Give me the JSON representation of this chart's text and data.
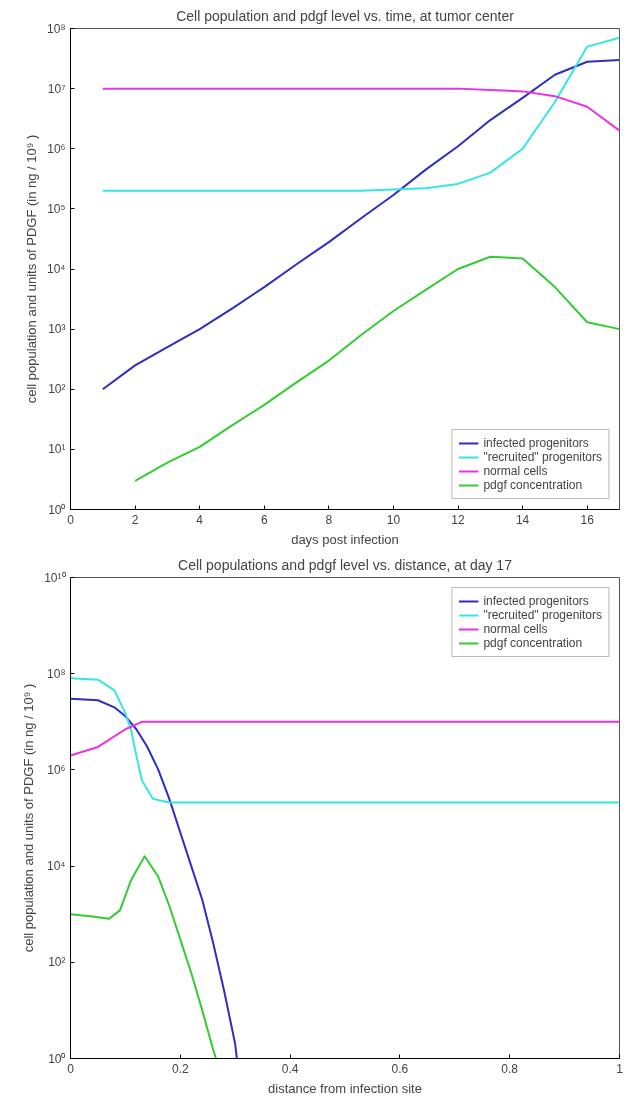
{
  "chart_data": [
    {
      "type": "line",
      "title": "Cell population and pdgf level vs. time, at tumor center",
      "xlabel": "days post infection",
      "ylabel": "cell population and units of PDGF (in ng / 10⁹ )",
      "log": "y",
      "grid": false,
      "legend": "bottom right",
      "xlim": [
        0,
        17
      ],
      "xticks": [
        0,
        2,
        4,
        6,
        8,
        10,
        12,
        14,
        16
      ],
      "ylim": [
        1,
        100000000
      ],
      "yticks": [
        {
          "value": 1,
          "label": "10⁰"
        },
        {
          "value": 10,
          "label": "10¹"
        },
        {
          "value": 100,
          "label": "10²"
        },
        {
          "value": 1000,
          "label": "10³"
        },
        {
          "value": 10000,
          "label": "10⁴"
        },
        {
          "value": 100000,
          "label": "10⁵"
        },
        {
          "value": 1000000,
          "label": "10⁶"
        },
        {
          "value": 10000000,
          "label": "10⁷"
        },
        {
          "value": 100000000,
          "label": "10⁸"
        }
      ],
      "series": [
        {
          "name": "infected progenitors",
          "color": "#2e2ebf",
          "x": [
            1,
            2,
            3,
            4,
            5,
            6,
            7,
            8,
            9,
            10,
            11,
            12,
            13,
            14,
            15,
            16,
            17
          ],
          "values": [
            100,
            250,
            500,
            1000,
            2200,
            5000,
            12000,
            28000,
            70000,
            170000,
            450000,
            1100000,
            3000000,
            7000000,
            17000000,
            28000000,
            30000000
          ]
        },
        {
          "name": "\"recruited\" progenitors",
          "color": "#33e6e6",
          "x": [
            1,
            2,
            3,
            4,
            5,
            6,
            7,
            8,
            9,
            10,
            11,
            12,
            13,
            14,
            15,
            16,
            17
          ],
          "values": [
            200000,
            200000,
            200000,
            200000,
            200000,
            200000,
            200000,
            200000,
            200000,
            210000,
            220000,
            260000,
            400000,
            1000000,
            6000000,
            50000000,
            70000000
          ]
        },
        {
          "name": "normal cells",
          "color": "#e633e6",
          "x": [
            1,
            2,
            3,
            4,
            5,
            6,
            7,
            8,
            9,
            10,
            11,
            12,
            13,
            14,
            15,
            16,
            17
          ],
          "values": [
            10000000,
            10000000,
            10000000,
            10000000,
            10000000,
            10000000,
            10000000,
            10000000,
            10000000,
            10000000,
            10000000,
            10000000,
            9500000,
            9000000,
            7500000,
            5000000,
            2000000
          ]
        },
        {
          "name": "pdgf concentration",
          "color": "#33cc33",
          "x": [
            2,
            3,
            4,
            5,
            6,
            7,
            8,
            9,
            10,
            11,
            12,
            13,
            14,
            15,
            16,
            17
          ],
          "values": [
            3,
            6,
            11,
            25,
            55,
            130,
            300,
            800,
            2000,
            4500,
            10000,
            16000,
            15000,
            5000,
            1300,
            1000
          ]
        }
      ]
    },
    {
      "type": "line",
      "title": "Cell populations and pdgf level vs. distance, at day 17",
      "xlabel": "distance from infection site",
      "ylabel": "cell population and units of PDGF (in ng / 10⁹ )",
      "log": "y",
      "grid": false,
      "legend": "top right",
      "xlim": [
        0,
        1
      ],
      "xticks": [
        0,
        0.2,
        0.4,
        0.6,
        0.8,
        1
      ],
      "ylim": [
        1,
        10000000000
      ],
      "yticks": [
        {
          "value": 1,
          "label": "10⁰"
        },
        {
          "value": 100,
          "label": "10²"
        },
        {
          "value": 10000,
          "label": "10⁴"
        },
        {
          "value": 1000000,
          "label": "10⁶"
        },
        {
          "value": 100000000,
          "label": "10⁸"
        },
        {
          "value": 10000000000,
          "label": "10¹⁰"
        }
      ],
      "series": [
        {
          "name": "infected progenitors",
          "color": "#2e2ebf",
          "x": [
            0,
            0.05,
            0.08,
            0.1,
            0.12,
            0.14,
            0.16,
            0.18,
            0.2,
            0.22,
            0.24,
            0.26,
            0.28,
            0.3,
            0.303
          ],
          "values": [
            30000000,
            28000000,
            20000000,
            13000000,
            7000000,
            3000000,
            1000000,
            250000,
            50000,
            10000,
            2000,
            250,
            25,
            2,
            1
          ]
        },
        {
          "name": "\"recruited\" progenitors",
          "color": "#33e6e6",
          "x": [
            0,
            0.05,
            0.08,
            0.1,
            0.11,
            0.12,
            0.13,
            0.15,
            0.18,
            1
          ],
          "values": [
            80000000,
            75000000,
            45000000,
            15000000,
            7000000,
            2000000,
            600000,
            250000,
            210000,
            210000
          ]
        },
        {
          "name": "normal cells",
          "color": "#e633e6",
          "x": [
            0,
            0.05,
            0.1,
            0.13,
            1
          ],
          "values": [
            2000000,
            3000000,
            7000000,
            10000000,
            10000000
          ]
        },
        {
          "name": "pdgf concentration",
          "color": "#33cc33",
          "x": [
            0,
            0.04,
            0.07,
            0.09,
            0.11,
            0.135,
            0.16,
            0.18,
            0.2,
            0.22,
            0.24,
            0.26,
            0.265
          ],
          "values": [
            1000,
            900,
            800,
            1200,
            5000,
            16000,
            6000,
            1500,
            300,
            60,
            10,
            1.5,
            1
          ]
        }
      ]
    }
  ]
}
